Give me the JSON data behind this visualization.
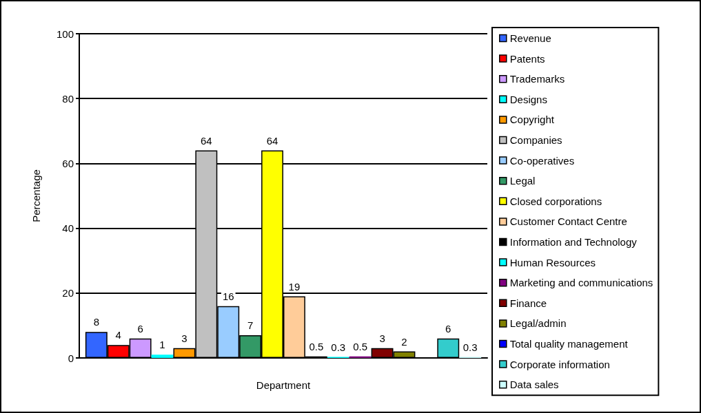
{
  "chart_data": {
    "type": "bar",
    "xlabel": "Department",
    "ylabel": "Percentage",
    "categories": [
      null
    ],
    "ylim": [
      0,
      100
    ],
    "yticks": [
      0,
      20,
      40,
      60,
      80,
      100
    ],
    "grid": "y",
    "legend": "right",
    "data_labels": true,
    "series": [
      {
        "name": "Revenue",
        "color": "#3366ff",
        "values": [
          8
        ]
      },
      {
        "name": "Patents",
        "color": "#ff0000",
        "values": [
          4
        ]
      },
      {
        "name": "Trademarks",
        "color": "#cc99ff",
        "values": [
          6
        ]
      },
      {
        "name": "Designs",
        "color": "#00ffff",
        "values": [
          1
        ]
      },
      {
        "name": "Copyright",
        "color": "#ff9900",
        "values": [
          3
        ]
      },
      {
        "name": "Companies",
        "color": "#c0c0c0",
        "values": [
          64
        ]
      },
      {
        "name": "Co-operatives",
        "color": "#99ccff",
        "values": [
          16
        ]
      },
      {
        "name": "Legal",
        "color": "#339966",
        "values": [
          7
        ]
      },
      {
        "name": "Closed corporations",
        "color": "#ffff00",
        "values": [
          64
        ]
      },
      {
        "name": "Customer Contact Centre",
        "color": "#ffcc99",
        "values": [
          19
        ]
      },
      {
        "name": "Information and Technology",
        "color": "#000000",
        "values": [
          0.5
        ]
      },
      {
        "name": "Human Resources",
        "color": "#00ffff",
        "values": [
          0.3
        ]
      },
      {
        "name": "Marketing and communications",
        "color": "#800080",
        "values": [
          0.5
        ]
      },
      {
        "name": "Finance",
        "color": "#800000",
        "values": [
          3
        ]
      },
      {
        "name": "Legal/admin",
        "color": "#808000",
        "values": [
          2
        ]
      },
      {
        "name": "Total quality management",
        "color": "#0000ff",
        "values": [
          null
        ]
      },
      {
        "name": "Corporate information",
        "color": "#33cccc",
        "values": [
          6
        ]
      },
      {
        "name": "Data sales",
        "color": "#ccffff",
        "values": [
          0.3
        ]
      }
    ]
  }
}
